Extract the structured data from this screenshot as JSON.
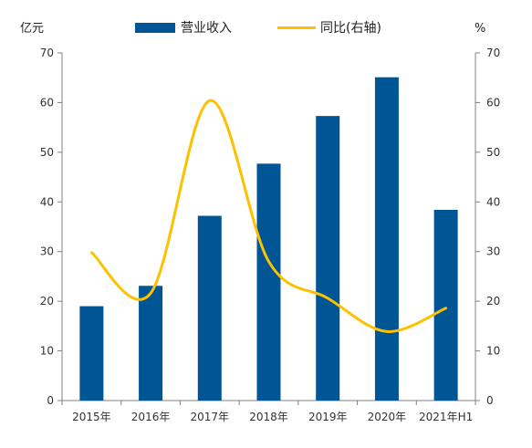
{
  "chart_data": {
    "type": "bar",
    "categories": [
      "2015年",
      "2016年",
      "2017年",
      "2018年",
      "2019年",
      "2020年",
      "2021年H1"
    ],
    "series": [
      {
        "name": "营业收入",
        "chart_type": "bar",
        "axis": "left",
        "color": "#005694",
        "values": [
          19.0,
          23.1,
          37.2,
          47.7,
          57.3,
          65.1,
          38.4
        ]
      },
      {
        "name": "同比(右轴)",
        "chart_type": "line",
        "axis": "right",
        "color": "#FFC000",
        "smooth": true,
        "values": [
          29.8,
          21.6,
          60.4,
          28.0,
          20.6,
          13.9,
          18.6
        ]
      }
    ],
    "y_left": {
      "unit": "亿元",
      "ylim": [
        0,
        70
      ],
      "ticks": [
        "0",
        "10",
        "20",
        "30",
        "40",
        "50",
        "60",
        "70"
      ]
    },
    "y_right": {
      "unit": "%",
      "ylim": [
        0,
        70
      ],
      "ticks": [
        "0",
        "10",
        "20",
        "30",
        "40",
        "50",
        "60",
        "70"
      ]
    },
    "legend": "top",
    "grid": false
  }
}
